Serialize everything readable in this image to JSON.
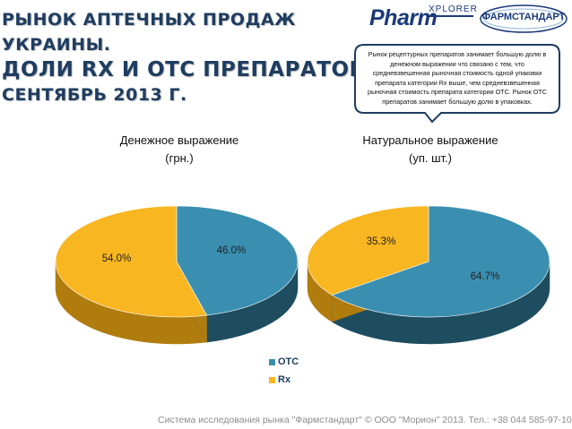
{
  "header": {
    "title_lines": [
      "РЫНОК АПТЕЧНЫХ ПРОДАЖ",
      "УКРАИНЫ.",
      "ДОЛИ RX И ОТС ПРЕПАРАТОВ.",
      "СЕНТЯБРЬ 2013 Г."
    ],
    "logo_pharm": "Pharm",
    "logo_xplorer": "XPLORER",
    "logo_fs": "ФАРМСТАНДАРТ"
  },
  "callout": {
    "text": "Рынок рецептурных препаратов занимает большую долю в денежном выражении что связано с тем, что средневзвешенная рыночная стоимость одной упаковки препарата категории Rx выше, чем средневзвешенная рыночная стоимость препарата категории ОТС. Рынок ОТС препаратов занимает большую долю в упаковках."
  },
  "colors": {
    "otc": "#3a8fb0",
    "rx": "#f8b621",
    "otc_side": "#1e4d60",
    "rx_side": "#b07c0e",
    "title": "#1f3d60"
  },
  "chart_data": [
    {
      "type": "pie",
      "title": "Денежное выражение (грн.)",
      "title_lines": [
        "Денежное выражение",
        "(грн.)"
      ],
      "slices": [
        {
          "name": "ОТС",
          "value": 46.0,
          "label": "46.0%"
        },
        {
          "name": "Rx",
          "value": 54.0,
          "label": "54.0%"
        }
      ]
    },
    {
      "type": "pie",
      "title": "Натуральное выражение (уп. шт.)",
      "title_lines": [
        "Натуральное выражение",
        "(уп. шт.)"
      ],
      "slices": [
        {
          "name": "ОТС",
          "value": 64.7,
          "label": "64.7%"
        },
        {
          "name": "Rx",
          "value": 35.3,
          "label": "35.3%"
        }
      ]
    }
  ],
  "legend": [
    {
      "name": "ОТС",
      "color_key": "otc"
    },
    {
      "name": "Rx",
      "color_key": "rx"
    }
  ],
  "footer": "Система исследования рынка \"Фармстандарт\" © ООО \"Морион\" 2013. Тел.: +38 044 585-97-10"
}
